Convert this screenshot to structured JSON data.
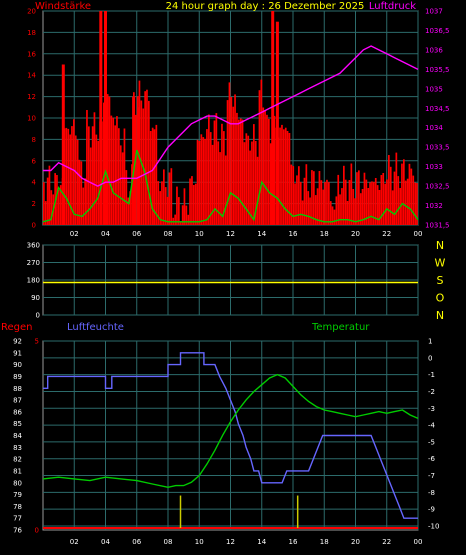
{
  "colors": {
    "wind_avg": "#ff0000",
    "wind_gust": "#00cc00",
    "pressure": "#ff00ff",
    "humidity": "#6666ff",
    "temperature": "#00cc00",
    "rain": "#ff0000",
    "grid": "#2c6b6b",
    "axis": "#9a9a9a",
    "title": "#ffff00",
    "compass": "#ffff00"
  },
  "chart_data": [
    {
      "type": "bar",
      "title": "24 hour graph day : 26 Dezember 2025",
      "left_label": "Windstärke",
      "right_label": "Luftdruck",
      "x_ticks": [
        "02",
        "04",
        "06",
        "08",
        "10",
        "12",
        "14",
        "16",
        "18",
        "20",
        "22",
        "00"
      ],
      "x_range": [
        0,
        24
      ],
      "ylim_left": [
        0,
        20
      ],
      "yticks_left": [
        "0",
        "2",
        "4",
        "6",
        "8",
        "10",
        "12",
        "14",
        "16",
        "18",
        "20"
      ],
      "ylim_right": [
        1031.5,
        1037
      ],
      "yticks_right": [
        "1031,5",
        "1032",
        "1032,5",
        "1033",
        "1033,5",
        "1034",
        "1034,5",
        "1035",
        "1035,5",
        "1036",
        "1036,5",
        "1037"
      ],
      "series": [
        {
          "name": "wind_level",
          "x": [
            0,
            0.5,
            1,
            1.5,
            2,
            2.5,
            3,
            3.5,
            4,
            4.5,
            5,
            5.5,
            6,
            6.5,
            7,
            7.5,
            8,
            8.5,
            9,
            9.5,
            10,
            10.5,
            11,
            11.5,
            12,
            12.5,
            13,
            13.5,
            14,
            14.5,
            15,
            15.5,
            16,
            16.5,
            17,
            17.5,
            18,
            18.5,
            19,
            19.5,
            20,
            20.5,
            21,
            21.5,
            22,
            22.5,
            23,
            23.5,
            24
          ],
          "values": [
            4,
            4,
            4,
            9,
            9,
            5,
            9,
            9,
            12,
            10,
            8,
            4,
            12,
            12,
            9,
            4,
            4,
            2,
            2,
            4,
            8,
            9,
            9,
            8,
            12,
            10,
            8,
            8,
            12,
            9,
            9,
            9,
            5,
            4,
            4,
            4,
            4,
            2,
            4,
            4,
            4,
            4,
            4,
            4,
            5,
            5,
            5,
            5,
            4
          ]
        },
        {
          "name": "gust_peaks",
          "x": [
            1.3,
            3.7,
            4.0,
            5.8,
            6.1,
            14.7,
            15.0
          ],
          "values": [
            15,
            20,
            20,
            12,
            11,
            20,
            19
          ]
        },
        {
          "name": "wind_avg_line",
          "x": [
            0,
            0.5,
            1,
            1.5,
            2,
            2.5,
            3,
            3.5,
            4,
            4.5,
            5,
            5.5,
            6,
            6.5,
            7,
            7.5,
            8,
            8.5,
            9,
            9.5,
            10,
            10.5,
            11,
            11.5,
            12,
            12.5,
            13,
            13.5,
            14,
            14.5,
            15,
            15.5,
            16,
            16.5,
            17,
            17.5,
            18,
            18.5,
            19,
            19.5,
            20,
            20.5,
            21,
            21.5,
            22,
            22.5,
            23,
            23.5,
            24
          ],
          "values": [
            0.3,
            0.5,
            3.5,
            2.5,
            1,
            0.8,
            1.5,
            2.5,
            5,
            3,
            2.5,
            2,
            7,
            5,
            1.5,
            0.5,
            0.3,
            0.3,
            0.3,
            0.3,
            0.3,
            0.5,
            1.5,
            0.8,
            3,
            2.5,
            1.5,
            0.5,
            4,
            3,
            2.5,
            1.5,
            0.8,
            1,
            0.8,
            0.5,
            0.3,
            0.3,
            0.5,
            0.5,
            0.3,
            0.5,
            0.8,
            0.5,
            1.5,
            1,
            2,
            1.5,
            0.5
          ]
        },
        {
          "name": "pressure",
          "x": [
            0,
            0.5,
            1,
            1.5,
            2,
            2.5,
            3,
            3.5,
            4,
            4.5,
            5,
            5.5,
            6,
            6.5,
            7,
            7.5,
            8,
            8.5,
            9,
            9.5,
            10,
            10.5,
            11,
            11.5,
            12,
            12.5,
            13,
            13.5,
            14,
            14.5,
            15,
            15.5,
            16,
            16.5,
            17,
            17.5,
            18,
            18.5,
            19,
            19.5,
            20,
            20.5,
            21,
            21.5,
            22,
            22.5,
            23,
            23.5,
            24
          ],
          "values": [
            1032.9,
            1032.9,
            1033.1,
            1033,
            1032.9,
            1032.7,
            1032.6,
            1032.5,
            1032.6,
            1032.6,
            1032.7,
            1032.7,
            1032.7,
            1032.8,
            1032.9,
            1033.2,
            1033.5,
            1033.7,
            1033.9,
            1034.1,
            1034.2,
            1034.3,
            1034.3,
            1034.2,
            1034.1,
            1034.1,
            1034.2,
            1034.3,
            1034.4,
            1034.5,
            1034.6,
            1034.7,
            1034.8,
            1034.9,
            1035,
            1035.1,
            1035.2,
            1035.3,
            1035.4,
            1035.6,
            1035.8,
            1036,
            1036.1,
            1036,
            1035.9,
            1035.8,
            1035.7,
            1035.6,
            1035.5
          ]
        }
      ]
    },
    {
      "type": "line",
      "title": "",
      "x_range": [
        0,
        24
      ],
      "ylim": [
        0,
        360
      ],
      "yticks": [
        "0",
        "90",
        "180",
        "270",
        "360"
      ],
      "compass": [
        "N",
        "W",
        "S",
        "O",
        "N"
      ],
      "series": [
        {
          "name": "wind_direction",
          "x": [
            0,
            24
          ],
          "values": [
            167,
            167
          ]
        }
      ]
    },
    {
      "type": "line",
      "title": "",
      "left_label": "Regen",
      "humidity_label": "Luftfeuchte",
      "temp_label": "Temperatur",
      "x_ticks": [
        "02",
        "04",
        "06",
        "08",
        "10",
        "12",
        "14",
        "16",
        "18",
        "20",
        "22",
        "00"
      ],
      "x_range": [
        0,
        24
      ],
      "ylim_humidity": [
        76,
        92
      ],
      "yticks_humidity": [
        "76",
        "77",
        "78",
        "79",
        "80",
        "81",
        "82",
        "83",
        "84",
        "85",
        "86",
        "87",
        "88",
        "89",
        "90",
        "91",
        "92"
      ],
      "ylim_rain": [
        0,
        5
      ],
      "yticks_rain": [
        "0",
        "5"
      ],
      "ylim_temp": [
        -10,
        1
      ],
      "yticks_temp": [
        "-10",
        "-9",
        "-8",
        "-7",
        "-6",
        "-5",
        "-4",
        "-3",
        "-2",
        "-1",
        "0",
        "1"
      ],
      "series": [
        {
          "name": "humidity",
          "x": [
            0,
            0.3,
            0.3,
            4.0,
            4.0,
            4.4,
            4.4,
            8.0,
            8.0,
            8.8,
            8.8,
            10.3,
            10.3,
            11.0,
            11.3,
            11.7,
            12.0,
            12.3,
            12.5,
            12.8,
            13.0,
            13.3,
            13.5,
            13.8,
            14.0,
            14.3,
            14.6,
            15.3,
            15.6,
            17.0,
            17.3,
            17.6,
            17.9,
            21.0,
            21.3,
            21.6,
            21.9,
            22.2,
            22.5,
            22.8,
            23.1,
            23.4,
            24
          ],
          "values": [
            88,
            88,
            89,
            89,
            88,
            88,
            89,
            89,
            90,
            90,
            91,
            91,
            90,
            90,
            89,
            88,
            87,
            86,
            85,
            84,
            83,
            82,
            81,
            81,
            80,
            80,
            80,
            80,
            81,
            81,
            82,
            83,
            84,
            84,
            83,
            82,
            81,
            80,
            79,
            78,
            77,
            77,
            77
          ]
        },
        {
          "name": "temperature",
          "x": [
            0,
            1,
            2,
            3,
            4,
            5,
            6,
            7,
            8,
            8.5,
            9,
            9.5,
            10,
            10.5,
            11,
            11.5,
            12,
            12.5,
            13,
            13.5,
            14,
            14.5,
            15,
            15.5,
            16,
            16.5,
            17,
            17.5,
            18,
            18.5,
            19,
            19.5,
            20,
            20.5,
            21,
            21.5,
            22,
            22.5,
            23,
            23.5,
            24
          ],
          "values": [
            -7.2,
            -7.1,
            -7.2,
            -7.3,
            -7.1,
            -7.2,
            -7.3,
            -7.5,
            -7.7,
            -7.6,
            -7.6,
            -7.4,
            -7,
            -6.3,
            -5.5,
            -4.6,
            -3.8,
            -3.1,
            -2.5,
            -2,
            -1.6,
            -1.2,
            -1,
            -1.2,
            -1.7,
            -2.2,
            -2.6,
            -2.9,
            -3.1,
            -3.2,
            -3.3,
            -3.4,
            -3.5,
            -3.4,
            -3.3,
            -3.2,
            -3.3,
            -3.2,
            -3.1,
            -3.4,
            -3.6
          ]
        },
        {
          "name": "rain_marks",
          "x": [
            8.8,
            16.3
          ],
          "values": [
            0.7,
            0.7
          ]
        }
      ]
    }
  ]
}
